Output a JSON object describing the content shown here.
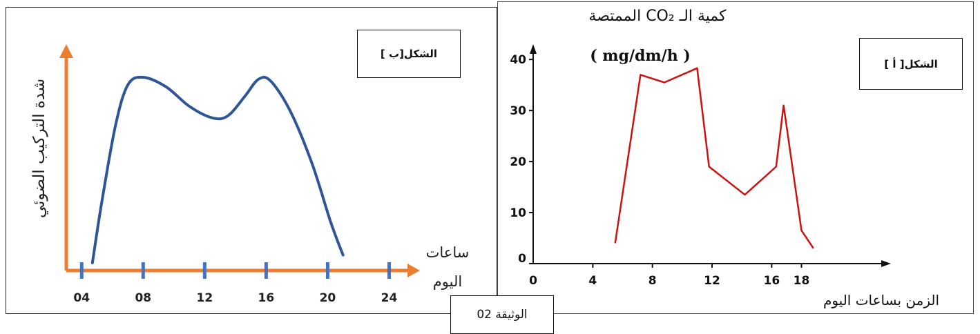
{
  "document_label": "الوثيقة 02",
  "chart_data": [
    {
      "type": "line",
      "figure_label": "الشكل[ب ]",
      "ylabel": "شدة التركيب الضوئي",
      "xlabel_line1": "ساعات",
      "xlabel_line2": "اليوم",
      "x_ticks": [
        "04",
        "08",
        "12",
        "16",
        "20",
        "24"
      ],
      "x": [
        4.7,
        5.3,
        6.2,
        7.0,
        8.0,
        9.5,
        11.0,
        12.5,
        13.5,
        14.6,
        15.5,
        16.3,
        17.6,
        19.0,
        20.2,
        21.0
      ],
      "y": [
        0.04,
        0.35,
        0.75,
        0.96,
        1.0,
        0.95,
        0.85,
        0.79,
        0.8,
        0.9,
        0.99,
        0.98,
        0.82,
        0.55,
        0.25,
        0.08
      ],
      "ylim": [
        0,
        1.15
      ],
      "xlim": [
        3,
        26
      ],
      "color": "#2f5597",
      "axis_color": "#ed7d31",
      "tick_color": "#4472c4"
    },
    {
      "type": "line",
      "figure_label": "الشكل[ أ ]",
      "title": "كمية الـ CO₂ الممتصة",
      "unit": "( mg/dm/h )",
      "xlabel": "الزمن بساعات اليوم",
      "x_ticks": [
        "0",
        "4",
        "8",
        "12",
        "16",
        "18"
      ],
      "x_tick_values": [
        0,
        4,
        8,
        12,
        16,
        18
      ],
      "y_ticks": [
        "0",
        "10",
        "20",
        "30",
        "40"
      ],
      "y_tick_values": [
        0,
        10,
        20,
        30,
        40
      ],
      "x": [
        5.5,
        7.2,
        8.8,
        11.0,
        11.8,
        14.2,
        16.3,
        16.8,
        18.0,
        18.8
      ],
      "y": [
        4,
        37,
        35.5,
        38.3,
        19,
        13.5,
        19,
        31,
        6.5,
        3
      ],
      "xlim": [
        0,
        24
      ],
      "ylim": [
        0,
        43
      ],
      "color": "#cc1111"
    }
  ]
}
